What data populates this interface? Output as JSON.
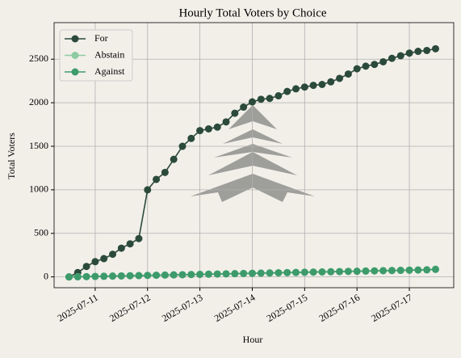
{
  "chart_data": {
    "type": "line",
    "title": "Hourly Total Voters by Choice",
    "xlabel": "Hour",
    "ylabel": "Total Voters",
    "x": [
      "2025-07-10T12:00",
      "2025-07-10T16:00",
      "2025-07-10T20:00",
      "2025-07-11T00:00",
      "2025-07-11T04:00",
      "2025-07-11T08:00",
      "2025-07-11T12:00",
      "2025-07-11T16:00",
      "2025-07-11T20:00",
      "2025-07-12T00:00",
      "2025-07-12T04:00",
      "2025-07-12T08:00",
      "2025-07-12T12:00",
      "2025-07-12T16:00",
      "2025-07-12T20:00",
      "2025-07-13T00:00",
      "2025-07-13T04:00",
      "2025-07-13T08:00",
      "2025-07-13T12:00",
      "2025-07-13T16:00",
      "2025-07-13T20:00",
      "2025-07-14T00:00",
      "2025-07-14T04:00",
      "2025-07-14T08:00",
      "2025-07-14T12:00",
      "2025-07-14T16:00",
      "2025-07-14T20:00",
      "2025-07-15T00:00",
      "2025-07-15T04:00",
      "2025-07-15T08:00",
      "2025-07-15T12:00",
      "2025-07-15T16:00",
      "2025-07-15T20:00",
      "2025-07-16T00:00",
      "2025-07-16T04:00",
      "2025-07-16T08:00",
      "2025-07-16T12:00",
      "2025-07-16T16:00",
      "2025-07-16T20:00",
      "2025-07-17T00:00",
      "2025-07-17T04:00",
      "2025-07-17T08:00",
      "2025-07-17T12:00"
    ],
    "series": [
      {
        "name": "For",
        "color": "#2b4a3b",
        "values": [
          0,
          50,
          120,
          175,
          210,
          260,
          330,
          380,
          440,
          1000,
          1120,
          1200,
          1350,
          1500,
          1590,
          1680,
          1700,
          1720,
          1780,
          1880,
          1950,
          2010,
          2040,
          2050,
          2080,
          2130,
          2160,
          2180,
          2200,
          2210,
          2240,
          2280,
          2330,
          2390,
          2420,
          2440,
          2470,
          2510,
          2540,
          2570,
          2590,
          2600,
          2620
        ]
      },
      {
        "name": "Abstain",
        "color": "#8ecba2",
        "values": [
          0,
          2,
          4,
          6,
          8,
          10,
          12,
          14,
          16,
          18,
          20,
          22,
          24,
          26,
          28,
          30,
          32,
          34,
          36,
          38,
          40,
          42,
          44,
          46,
          48,
          50,
          52,
          54,
          56,
          58,
          60,
          62,
          64,
          66,
          68,
          70,
          72,
          74,
          76,
          78,
          80,
          82,
          90
        ]
      },
      {
        "name": "Against",
        "color": "#3d9b6b",
        "values": [
          0,
          1,
          3,
          5,
          7,
          9,
          11,
          13,
          15,
          17,
          19,
          21,
          23,
          25,
          27,
          29,
          31,
          33,
          35,
          37,
          39,
          41,
          43,
          45,
          47,
          49,
          51,
          53,
          55,
          57,
          59,
          61,
          63,
          65,
          67,
          69,
          71,
          73,
          75,
          77,
          79,
          81,
          86
        ]
      }
    ],
    "xlim": [
      "2025-07-10T05:10",
      "2025-07-17T20:20"
    ],
    "xticks": [
      "2025-07-11",
      "2025-07-12",
      "2025-07-13",
      "2025-07-14",
      "2025-07-15",
      "2025-07-16",
      "2025-07-17"
    ],
    "ylim": [
      -124,
      2920
    ],
    "yticks": [
      0,
      500,
      1000,
      1500,
      2000,
      2500
    ],
    "grid": true,
    "legend": "upper left"
  }
}
